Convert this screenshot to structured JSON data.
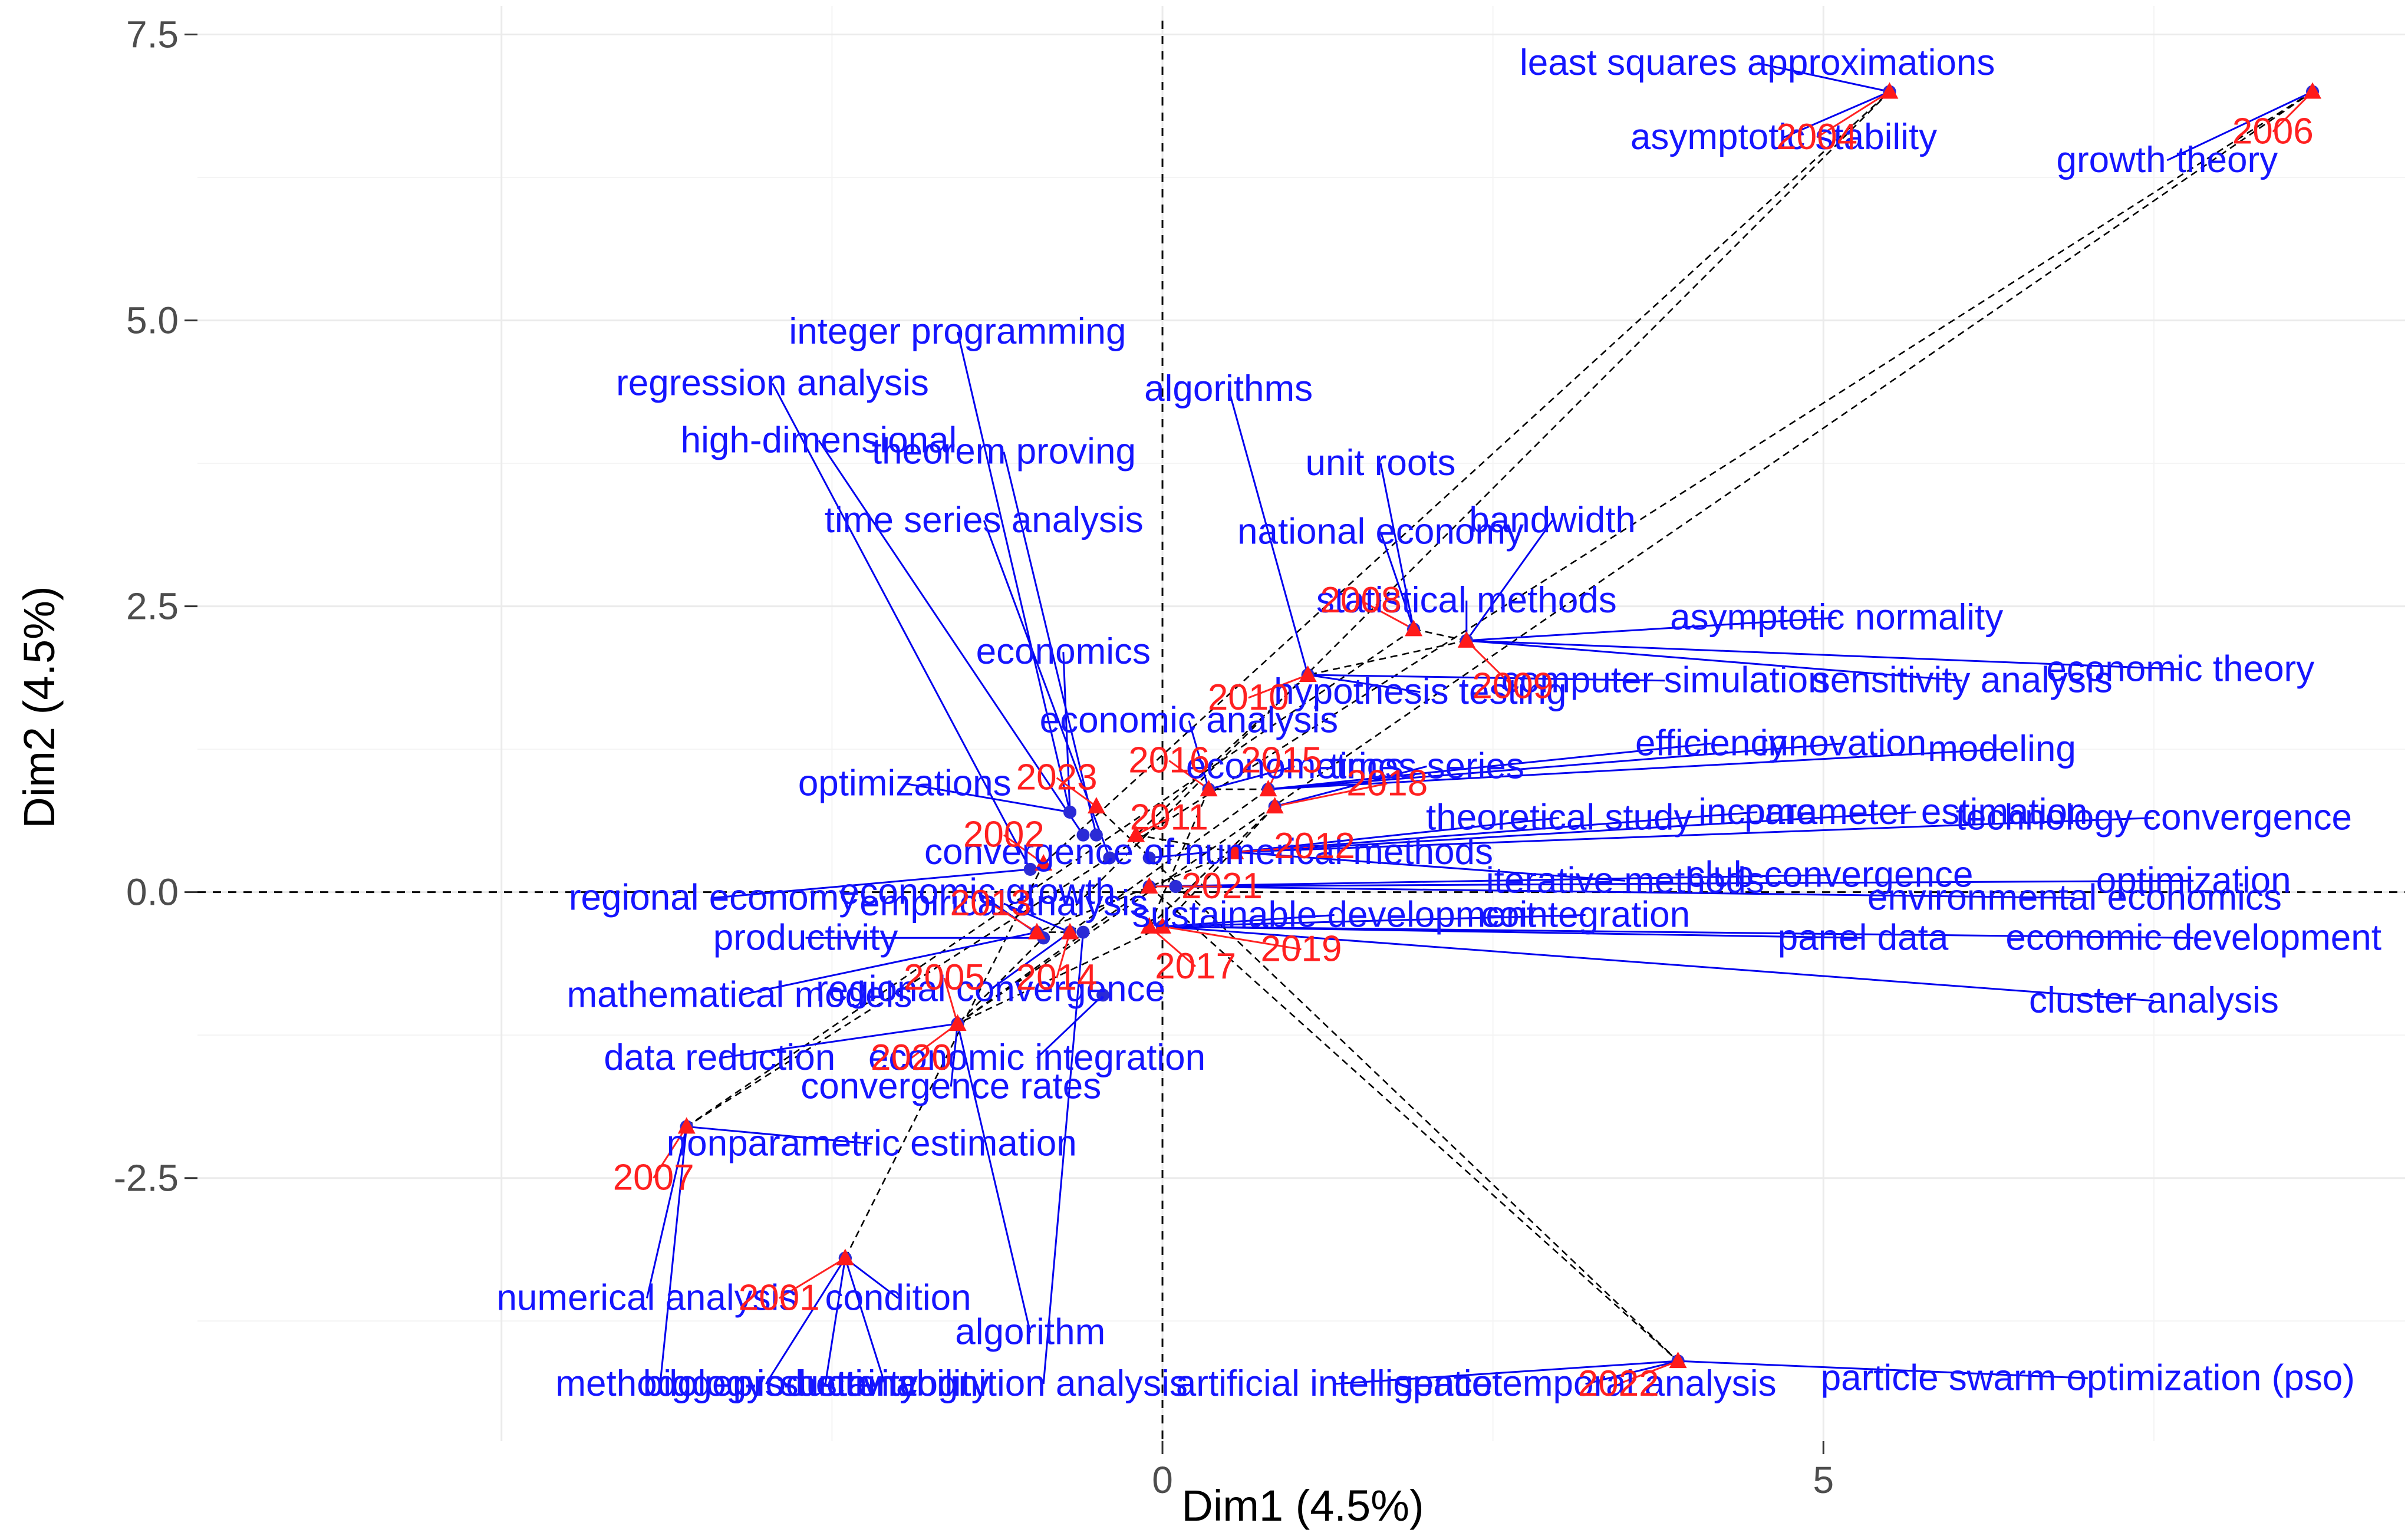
{
  "chart_data": {
    "type": "scatter",
    "title": "",
    "xlabel": "Dim1 (4.5%)",
    "ylabel": "Dim2 (4.5%)",
    "xlim": [
      -7.3,
      9.4
    ],
    "ylim": [
      -4.8,
      7.75
    ],
    "x_ticks": [
      0,
      5
    ],
    "y_ticks": [
      -2.5,
      0.0,
      2.5,
      5.0,
      7.5
    ],
    "colors": {
      "keywords": "#1515ff",
      "years": "#ff2020",
      "grid": "#ebebeb"
    },
    "keywords": [
      {
        "label": "least squares approximations",
        "x": 5.5,
        "y": 7.0,
        "lx": 4.5,
        "ly": 7.25
      },
      {
        "label": "asymptotic stability",
        "x": 5.5,
        "y": 7.0,
        "lx": 4.7,
        "ly": 6.6
      },
      {
        "label": "growth theory",
        "x": 8.7,
        "y": 7.0,
        "lx": 7.6,
        "ly": 6.4
      },
      {
        "label": "integer programming",
        "x": -0.7,
        "y": 0.7,
        "lx": -1.55,
        "ly": 4.9
      },
      {
        "label": "regression analysis",
        "x": -1.0,
        "y": 0.2,
        "lx": -2.95,
        "ly": 4.45
      },
      {
        "label": "high-dimensional",
        "x": -0.6,
        "y": 0.5,
        "lx": -2.6,
        "ly": 3.95
      },
      {
        "label": "theorem proving",
        "x": -0.5,
        "y": 0.5,
        "lx": -1.2,
        "ly": 3.85
      },
      {
        "label": "algorithms",
        "x": 1.1,
        "y": 1.9,
        "lx": 0.5,
        "ly": 4.4
      },
      {
        "label": "unit roots",
        "x": 1.9,
        "y": 2.3,
        "lx": 1.65,
        "ly": 3.75
      },
      {
        "label": "time series analysis",
        "x": -0.4,
        "y": 0.3,
        "lx": -1.35,
        "ly": 3.25
      },
      {
        "label": "national economy",
        "x": 1.9,
        "y": 2.3,
        "lx": 1.65,
        "ly": 3.15
      },
      {
        "label": "bandwidth",
        "x": 2.3,
        "y": 2.2,
        "lx": 2.95,
        "ly": 3.25
      },
      {
        "label": "statistical methods",
        "x": 2.3,
        "y": 2.2,
        "lx": 2.3,
        "ly": 2.55
      },
      {
        "label": "asymptotic normality",
        "x": 2.3,
        "y": 2.2,
        "lx": 5.1,
        "ly": 2.4
      },
      {
        "label": "economics",
        "x": -0.7,
        "y": 0.7,
        "lx": -0.75,
        "ly": 2.1
      },
      {
        "label": "economic theory",
        "x": 2.3,
        "y": 2.2,
        "lx": 7.7,
        "ly": 1.95
      },
      {
        "label": "computer simulation",
        "x": 1.1,
        "y": 1.9,
        "lx": 3.8,
        "ly": 1.85
      },
      {
        "label": "hypothesis testing",
        "x": 1.1,
        "y": 1.9,
        "lx": 1.95,
        "ly": 1.75
      },
      {
        "label": "sensitivity analysis",
        "x": 2.3,
        "y": 2.2,
        "lx": 6.05,
        "ly": 1.85
      },
      {
        "label": "economic analysis",
        "x": 0.35,
        "y": 0.9,
        "lx": 0.2,
        "ly": 1.5
      },
      {
        "label": "efficiency",
        "x": 0.8,
        "y": 0.9,
        "lx": 4.15,
        "ly": 1.3
      },
      {
        "label": "innovation",
        "x": 0.8,
        "y": 0.9,
        "lx": 5.15,
        "ly": 1.3
      },
      {
        "label": "modeling",
        "x": 0.8,
        "y": 0.9,
        "lx": 6.35,
        "ly": 1.25
      },
      {
        "label": "econometrics",
        "x": 0.35,
        "y": 0.9,
        "lx": 1.0,
        "ly": 1.1
      },
      {
        "label": "times series",
        "x": 0.85,
        "y": 0.75,
        "lx": 2.0,
        "ly": 1.1
      },
      {
        "label": "optimizations",
        "x": -0.7,
        "y": 0.7,
        "lx": -1.95,
        "ly": 0.95
      },
      {
        "label": "theoretical study",
        "x": 0.55,
        "y": 0.35,
        "lx": 3.0,
        "ly": 0.65
      },
      {
        "label": "income",
        "x": 0.55,
        "y": 0.35,
        "lx": 4.5,
        "ly": 0.7
      },
      {
        "label": "parameter estimation",
        "x": 0.55,
        "y": 0.35,
        "lx": 5.7,
        "ly": 0.7
      },
      {
        "label": "technology convergence",
        "x": 0.55,
        "y": 0.35,
        "lx": 7.5,
        "ly": 0.65
      },
      {
        "label": "convergence of numerical methods",
        "x": -0.1,
        "y": 0.3,
        "lx": 0.35,
        "ly": 0.35
      },
      {
        "label": "economic growth",
        "x": -0.9,
        "y": -0.4,
        "lx": -1.4,
        "ly": 0.0
      },
      {
        "label": "regional economy",
        "x": -1.0,
        "y": 0.2,
        "lx": -3.4,
        "ly": -0.05
      },
      {
        "label": "iterative methods",
        "x": 0.55,
        "y": 0.35,
        "lx": 3.5,
        "ly": 0.1
      },
      {
        "label": "club convergence",
        "x": -0.1,
        "y": 0.05,
        "lx": 5.05,
        "ly": 0.15
      },
      {
        "label": "optimization",
        "x": 0.1,
        "y": 0.05,
        "lx": 7.8,
        "ly": 0.1
      },
      {
        "label": "environmental economics",
        "x": 0.1,
        "y": 0.05,
        "lx": 6.9,
        "ly": -0.05
      },
      {
        "label": "empirical analysis",
        "x": -0.7,
        "y": -0.35,
        "lx": -1.2,
        "ly": -0.1
      },
      {
        "label": "sustainable development",
        "x": 0.0,
        "y": -0.3,
        "lx": 1.3,
        "ly": -0.2
      },
      {
        "label": "cointegration",
        "x": 0.0,
        "y": -0.3,
        "lx": 3.2,
        "ly": -0.2
      },
      {
        "label": "productivity",
        "x": -0.9,
        "y": -0.4,
        "lx": -2.7,
        "ly": -0.4
      },
      {
        "label": "panel data",
        "x": 0.0,
        "y": -0.3,
        "lx": 5.3,
        "ly": -0.4
      },
      {
        "label": "economic development",
        "x": 0.0,
        "y": -0.3,
        "lx": 7.8,
        "ly": -0.4
      },
      {
        "label": "mathematical models",
        "x": -0.95,
        "y": -0.35,
        "lx": -3.2,
        "ly": -0.9
      },
      {
        "label": "regional convergence",
        "x": -0.7,
        "y": -0.35,
        "lx": -1.3,
        "ly": -0.85
      },
      {
        "label": "cluster analysis",
        "x": 0.0,
        "y": -0.3,
        "lx": 7.5,
        "ly": -0.95
      },
      {
        "label": "data reduction",
        "x": -1.55,
        "y": -1.15,
        "lx": -3.35,
        "ly": -1.45
      },
      {
        "label": "economic integration",
        "x": -0.45,
        "y": -0.9,
        "lx": -0.95,
        "ly": -1.45
      },
      {
        "label": "convergence rates",
        "x": -1.55,
        "y": -1.15,
        "lx": -1.6,
        "ly": -1.7
      },
      {
        "label": "nonparametric estimation",
        "x": -3.6,
        "y": -2.05,
        "lx": -2.2,
        "ly": -2.2
      },
      {
        "label": "numerical analysis",
        "x": -3.6,
        "y": -2.05,
        "lx": -3.9,
        "ly": -3.55
      },
      {
        "label": "condition",
        "x": -2.4,
        "y": -3.2,
        "lx": -2.0,
        "ly": -3.55
      },
      {
        "label": "algorithm",
        "x": -1.55,
        "y": -1.15,
        "lx": -1.0,
        "ly": -3.85
      },
      {
        "label": "methodology",
        "x": -3.6,
        "y": -2.05,
        "lx": -3.8,
        "ly": -4.3
      },
      {
        "label": "bigger-is-better",
        "x": -2.4,
        "y": -3.2,
        "lx": -3.0,
        "ly": -4.3
      },
      {
        "label": "productivity",
        "x": -2.4,
        "y": -3.2,
        "lx": -2.55,
        "ly": -4.3
      },
      {
        "label": "sustainability",
        "x": -2.4,
        "y": -3.2,
        "lx": -2.1,
        "ly": -4.3
      },
      {
        "label": "cognition analysis",
        "x": -0.6,
        "y": -0.35,
        "lx": -0.9,
        "ly": -4.3
      },
      {
        "label": "artificial intelligence",
        "x": 3.9,
        "y": -4.1,
        "lx": 1.3,
        "ly": -4.3
      },
      {
        "label": "spatiotemporal analysis",
        "x": 3.9,
        "y": -4.1,
        "lx": 3.2,
        "ly": -4.3
      },
      {
        "label": "particle swarm optimization (pso)",
        "x": 3.9,
        "y": -4.1,
        "lx": 7.0,
        "ly": -4.25
      }
    ],
    "years": [
      {
        "label": "2004",
        "x": 5.5,
        "y": 7.0,
        "lx": 4.95,
        "ly": 6.6
      },
      {
        "label": "2006",
        "x": 8.7,
        "y": 7.0,
        "lx": 8.4,
        "ly": 6.65
      },
      {
        "label": "2008",
        "x": 1.9,
        "y": 2.3,
        "lx": 1.5,
        "ly": 2.55
      },
      {
        "label": "2009",
        "x": 2.3,
        "y": 2.2,
        "lx": 2.65,
        "ly": 1.8
      },
      {
        "label": "2010",
        "x": 1.1,
        "y": 1.9,
        "lx": 0.65,
        "ly": 1.7
      },
      {
        "label": "2016",
        "x": 0.35,
        "y": 0.9,
        "lx": 0.05,
        "ly": 1.15
      },
      {
        "label": "2015",
        "x": 0.8,
        "y": 0.9,
        "lx": 0.9,
        "ly": 1.15
      },
      {
        "label": "2018",
        "x": 0.85,
        "y": 0.75,
        "lx": 1.7,
        "ly": 0.95
      },
      {
        "label": "2023",
        "x": -0.5,
        "y": 0.75,
        "lx": -0.8,
        "ly": 1.0
      },
      {
        "label": "2002",
        "x": -0.9,
        "y": 0.25,
        "lx": -1.2,
        "ly": 0.5
      },
      {
        "label": "2011",
        "x": -0.2,
        "y": 0.5,
        "lx": 0.05,
        "ly": 0.65
      },
      {
        "label": "2012",
        "x": 0.55,
        "y": 0.35,
        "lx": 1.15,
        "ly": 0.4
      },
      {
        "label": "2021",
        "x": -0.1,
        "y": 0.05,
        "lx": 0.45,
        "ly": 0.05
      },
      {
        "label": "2013",
        "x": -0.95,
        "y": -0.35,
        "lx": -1.3,
        "ly": -0.1
      },
      {
        "label": "2019",
        "x": 0.0,
        "y": -0.3,
        "lx": 1.05,
        "ly": -0.5
      },
      {
        "label": "2017",
        "x": -0.1,
        "y": -0.3,
        "lx": 0.25,
        "ly": -0.65
      },
      {
        "label": "2005",
        "x": -1.55,
        "y": -1.15,
        "lx": -1.65,
        "ly": -0.75
      },
      {
        "label": "2014",
        "x": -0.7,
        "y": -0.35,
        "lx": -0.8,
        "ly": -0.75
      },
      {
        "label": "2020",
        "x": -1.55,
        "y": -1.15,
        "lx": -1.9,
        "ly": -1.45
      },
      {
        "label": "2007",
        "x": -3.6,
        "y": -2.05,
        "lx": -3.85,
        "ly": -2.5
      },
      {
        "label": "2001",
        "x": -2.4,
        "y": -3.2,
        "lx": -2.9,
        "ly": -3.55
      },
      {
        "label": "2022",
        "x": 3.9,
        "y": -4.1,
        "lx": 3.45,
        "ly": -4.3
      }
    ],
    "path_order": [
      "2001",
      "2002",
      "2004",
      "2005",
      "2006",
      "2007",
      "2008",
      "2009",
      "2010",
      "2011",
      "2012",
      "2013",
      "2014",
      "2015",
      "2016",
      "2017",
      "2018",
      "2019",
      "2020",
      "2021",
      "2022",
      "2023"
    ]
  }
}
